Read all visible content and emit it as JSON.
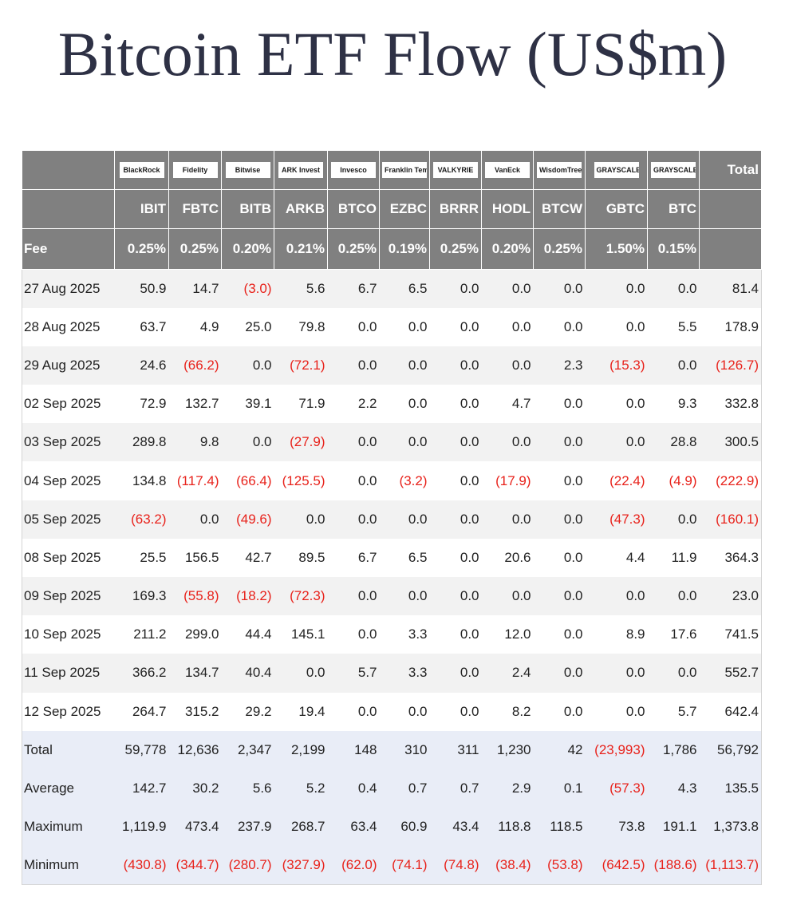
{
  "title": "Bitcoin ETF Flow (US$m)",
  "table": {
    "issuers": [
      "BlackRock",
      "Fidelity",
      "Bitwise",
      "ARK Invest",
      "Invesco",
      "Franklin Templeton",
      "VALKYRIE",
      "VanEck",
      "WisdomTree",
      "GRAYSCALE",
      "GRAYSCALE"
    ],
    "total_header": "Total",
    "tickers": [
      "IBIT",
      "FBTC",
      "BITB",
      "ARKB",
      "BTCO",
      "EZBC",
      "BRRR",
      "HODL",
      "BTCW",
      "GBTC",
      "BTC"
    ],
    "fee_label": "Fee",
    "fees": [
      "0.25%",
      "0.25%",
      "0.20%",
      "0.21%",
      "0.25%",
      "0.19%",
      "0.25%",
      "0.20%",
      "0.25%",
      "1.50%",
      "0.15%"
    ],
    "rows": [
      [
        "27 Aug 2025",
        "50.9",
        "14.7",
        "(3.0)",
        "5.6",
        "6.7",
        "6.5",
        "0.0",
        "0.0",
        "0.0",
        "0.0",
        "0.0",
        "81.4"
      ],
      [
        "28 Aug 2025",
        "63.7",
        "4.9",
        "25.0",
        "79.8",
        "0.0",
        "0.0",
        "0.0",
        "0.0",
        "0.0",
        "0.0",
        "5.5",
        "178.9"
      ],
      [
        "29 Aug 2025",
        "24.6",
        "(66.2)",
        "0.0",
        "(72.1)",
        "0.0",
        "0.0",
        "0.0",
        "0.0",
        "2.3",
        "(15.3)",
        "0.0",
        "(126.7)"
      ],
      [
        "02 Sep 2025",
        "72.9",
        "132.7",
        "39.1",
        "71.9",
        "2.2",
        "0.0",
        "0.0",
        "4.7",
        "0.0",
        "0.0",
        "9.3",
        "332.8"
      ],
      [
        "03 Sep 2025",
        "289.8",
        "9.8",
        "0.0",
        "(27.9)",
        "0.0",
        "0.0",
        "0.0",
        "0.0",
        "0.0",
        "0.0",
        "28.8",
        "300.5"
      ],
      [
        "04 Sep 2025",
        "134.8",
        "(117.4)",
        "(66.4)",
        "(125.5)",
        "0.0",
        "(3.2)",
        "0.0",
        "(17.9)",
        "0.0",
        "(22.4)",
        "(4.9)",
        "(222.9)"
      ],
      [
        "05 Sep 2025",
        "(63.2)",
        "0.0",
        "(49.6)",
        "0.0",
        "0.0",
        "0.0",
        "0.0",
        "0.0",
        "0.0",
        "(47.3)",
        "0.0",
        "(160.1)"
      ],
      [
        "08 Sep 2025",
        "25.5",
        "156.5",
        "42.7",
        "89.5",
        "6.7",
        "6.5",
        "0.0",
        "20.6",
        "0.0",
        "4.4",
        "11.9",
        "364.3"
      ],
      [
        "09 Sep 2025",
        "169.3",
        "(55.8)",
        "(18.2)",
        "(72.3)",
        "0.0",
        "0.0",
        "0.0",
        "0.0",
        "0.0",
        "0.0",
        "0.0",
        "23.0"
      ],
      [
        "10 Sep 2025",
        "211.2",
        "299.0",
        "44.4",
        "145.1",
        "0.0",
        "3.3",
        "0.0",
        "12.0",
        "0.0",
        "8.9",
        "17.6",
        "741.5"
      ],
      [
        "11 Sep 2025",
        "366.2",
        "134.7",
        "40.4",
        "0.0",
        "5.7",
        "3.3",
        "0.0",
        "2.4",
        "0.0",
        "0.0",
        "0.0",
        "552.7"
      ],
      [
        "12 Sep 2025",
        "264.7",
        "315.2",
        "29.2",
        "19.4",
        "0.0",
        "0.0",
        "0.0",
        "8.2",
        "0.0",
        "0.0",
        "5.7",
        "642.4"
      ]
    ],
    "summary_rows": [
      [
        "Total",
        "59,778",
        "12,636",
        "2,347",
        "2,199",
        "148",
        "310",
        "311",
        "1,230",
        "42",
        "(23,993)",
        "1,786",
        "56,792"
      ],
      [
        "Average",
        "142.7",
        "30.2",
        "5.6",
        "5.2",
        "0.4",
        "0.7",
        "0.7",
        "2.9",
        "0.1",
        "(57.3)",
        "4.3",
        "135.5"
      ],
      [
        "Maximum",
        "1,119.9",
        "473.4",
        "237.9",
        "268.7",
        "63.4",
        "60.9",
        "43.4",
        "118.8",
        "118.5",
        "73.8",
        "191.1",
        "1,373.8"
      ],
      [
        "Minimum",
        "(430.8)",
        "(344.7)",
        "(280.7)",
        "(327.9)",
        "(62.0)",
        "(74.1)",
        "(74.8)",
        "(38.4)",
        "(53.8)",
        "(642.5)",
        "(188.6)",
        "(1,113.7)"
      ]
    ]
  }
}
